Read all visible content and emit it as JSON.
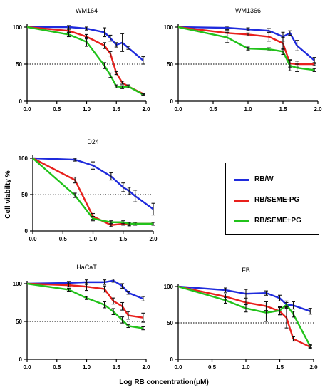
{
  "legend": [
    {
      "label": "RB/W",
      "color": "#1f2bdc"
    },
    {
      "label": "RB/SEME-PG",
      "color": "#e8201c"
    },
    {
      "label": "RB/SEME+PG",
      "color": "#21c21a"
    }
  ],
  "shared_ylabel": "Cell viabilty %",
  "shared_xlabel": "Log RB concentration(μM)",
  "chart_data": [
    {
      "type": "line",
      "title": "WM164",
      "x": [
        0.0,
        0.7,
        1.0,
        1.3,
        1.4,
        1.5,
        1.6,
        1.7,
        1.95
      ],
      "xlim": [
        0,
        2
      ],
      "ylim": [
        0,
        100
      ],
      "xticks": [
        "0.0",
        "0.5",
        "1.0",
        "1.5",
        "2.0"
      ],
      "yticks": [
        "0",
        "50",
        "100"
      ],
      "reference_line": 50,
      "series": [
        {
          "name": "RB/W",
          "color": "#1f2bdc",
          "values": [
            100,
            100,
            98,
            93,
            85,
            76,
            79,
            72,
            55
          ],
          "errors": [
            0,
            2,
            2,
            6,
            4,
            3,
            12,
            2,
            5
          ]
        },
        {
          "name": "RB/SEME-PG",
          "color": "#e8201c",
          "values": [
            100,
            95,
            87,
            75,
            64,
            38,
            25,
            20,
            10
          ],
          "errors": [
            0,
            2,
            3,
            4,
            3,
            2,
            2,
            2,
            1
          ]
        },
        {
          "name": "RB/SEME+PG",
          "color": "#21c21a",
          "values": [
            100,
            90,
            80,
            48,
            35,
            20,
            19,
            20,
            9
          ],
          "errors": [
            0,
            3,
            6,
            4,
            3,
            2,
            2,
            2,
            1
          ]
        }
      ]
    },
    {
      "type": "line",
      "title": "WM1366",
      "x": [
        0.0,
        0.7,
        1.0,
        1.3,
        1.5,
        1.6,
        1.7,
        1.95
      ],
      "xlim": [
        0,
        2
      ],
      "ylim": [
        0,
        100
      ],
      "xticks": [
        "0.0",
        "0.5",
        "1.0",
        "1.5",
        "2.0"
      ],
      "yticks": [
        "0",
        "50",
        "100"
      ],
      "reference_line": 50,
      "series": [
        {
          "name": "RB/W",
          "color": "#1f2bdc",
          "values": [
            100,
            99,
            97,
            95,
            87,
            92,
            75,
            55
          ],
          "errors": [
            0,
            2,
            2,
            3,
            6,
            3,
            7,
            4
          ]
        },
        {
          "name": "RB/SEME-PG",
          "color": "#e8201c",
          "values": [
            100,
            92,
            90,
            87,
            78,
            51,
            50,
            50
          ],
          "errors": [
            0,
            4,
            2,
            6,
            8,
            5,
            4,
            2
          ]
        },
        {
          "name": "RB/SEME+PG",
          "color": "#21c21a",
          "values": [
            100,
            86,
            71,
            70,
            67,
            48,
            45,
            42
          ],
          "errors": [
            0,
            7,
            2,
            2,
            4,
            7,
            5,
            2
          ]
        }
      ]
    },
    {
      "type": "line",
      "title": "D24",
      "ylabel": "Cell viabilty %",
      "x": [
        0.0,
        0.7,
        1.0,
        1.3,
        1.5,
        1.6,
        1.7,
        2.0
      ],
      "xlim": [
        0,
        2
      ],
      "ylim": [
        0,
        100
      ],
      "xticks": [
        "0.0",
        "0.5",
        "1.0",
        "1.5",
        "2.0"
      ],
      "yticks": [
        "0",
        "50",
        "100"
      ],
      "reference_line": 50,
      "series": [
        {
          "name": "RB/W",
          "color": "#1f2bdc",
          "values": [
            100,
            98,
            90,
            75,
            60,
            55,
            48,
            30
          ],
          "errors": [
            0,
            2,
            5,
            5,
            6,
            5,
            8,
            8
          ]
        },
        {
          "name": "RB/SEME-PG",
          "color": "#e8201c",
          "values": [
            100,
            70,
            20,
            8,
            10,
            9,
            10,
            10
          ],
          "errors": [
            0,
            4,
            4,
            2,
            2,
            2,
            2,
            2
          ]
        },
        {
          "name": "RB/SEME+PG",
          "color": "#21c21a",
          "values": [
            100,
            49,
            17,
            12,
            12,
            10,
            10,
            10
          ],
          "errors": [
            0,
            3,
            3,
            2,
            2,
            2,
            2,
            2
          ]
        }
      ]
    },
    {
      "type": "line",
      "title": "HaCaT",
      "x": [
        0.0,
        0.7,
        1.0,
        1.3,
        1.45,
        1.6,
        1.7,
        1.95
      ],
      "xlim": [
        0,
        2
      ],
      "ylim": [
        0,
        100
      ],
      "xticks": [
        "0.0",
        "0.5",
        "1.0",
        "1.5",
        "2.0"
      ],
      "yticks": [
        "0",
        "50",
        "100"
      ],
      "reference_line": 50,
      "series": [
        {
          "name": "RB/W",
          "color": "#1f2bdc",
          "values": [
            100,
            101,
            102,
            102,
            104,
            97,
            88,
            80
          ],
          "errors": [
            0,
            2,
            3,
            3,
            2,
            3,
            2,
            3
          ]
        },
        {
          "name": "RB/SEME-PG",
          "color": "#e8201c",
          "values": [
            100,
            98,
            96,
            93,
            77,
            70,
            58,
            55
          ],
          "errors": [
            0,
            2,
            5,
            4,
            4,
            5,
            5,
            6
          ]
        },
        {
          "name": "RB/SEME+PG",
          "color": "#21c21a",
          "values": [
            100,
            92,
            81,
            72,
            63,
            52,
            44,
            41
          ],
          "errors": [
            0,
            2,
            2,
            4,
            4,
            4,
            2,
            2
          ]
        }
      ]
    },
    {
      "type": "line",
      "title": "FB",
      "x": [
        0.0,
        0.7,
        1.0,
        1.3,
        1.5,
        1.6,
        1.7,
        1.95
      ],
      "xlim": [
        0,
        2
      ],
      "ylim": [
        0,
        100
      ],
      "xticks": [
        "0.0",
        "0.5",
        "1.0",
        "1.5",
        "2.0"
      ],
      "yticks": [
        "0",
        "50",
        "100"
      ],
      "reference_line": 50,
      "series": [
        {
          "name": "RB/W",
          "color": "#1f2bdc",
          "values": [
            100,
            95,
            90,
            91,
            84,
            75,
            74,
            66
          ],
          "errors": [
            0,
            3,
            6,
            3,
            4,
            5,
            5,
            4
          ]
        },
        {
          "name": "RB/SEME-PG",
          "color": "#e8201c",
          "values": [
            100,
            86,
            78,
            73,
            66,
            57,
            28,
            17
          ],
          "errors": [
            0,
            4,
            5,
            6,
            5,
            14,
            3,
            2
          ]
        },
        {
          "name": "RB/SEME+PG",
          "color": "#21c21a",
          "values": [
            100,
            81,
            70,
            64,
            67,
            75,
            62,
            18
          ],
          "errors": [
            0,
            4,
            5,
            12,
            5,
            3,
            4,
            2
          ]
        }
      ]
    }
  ]
}
